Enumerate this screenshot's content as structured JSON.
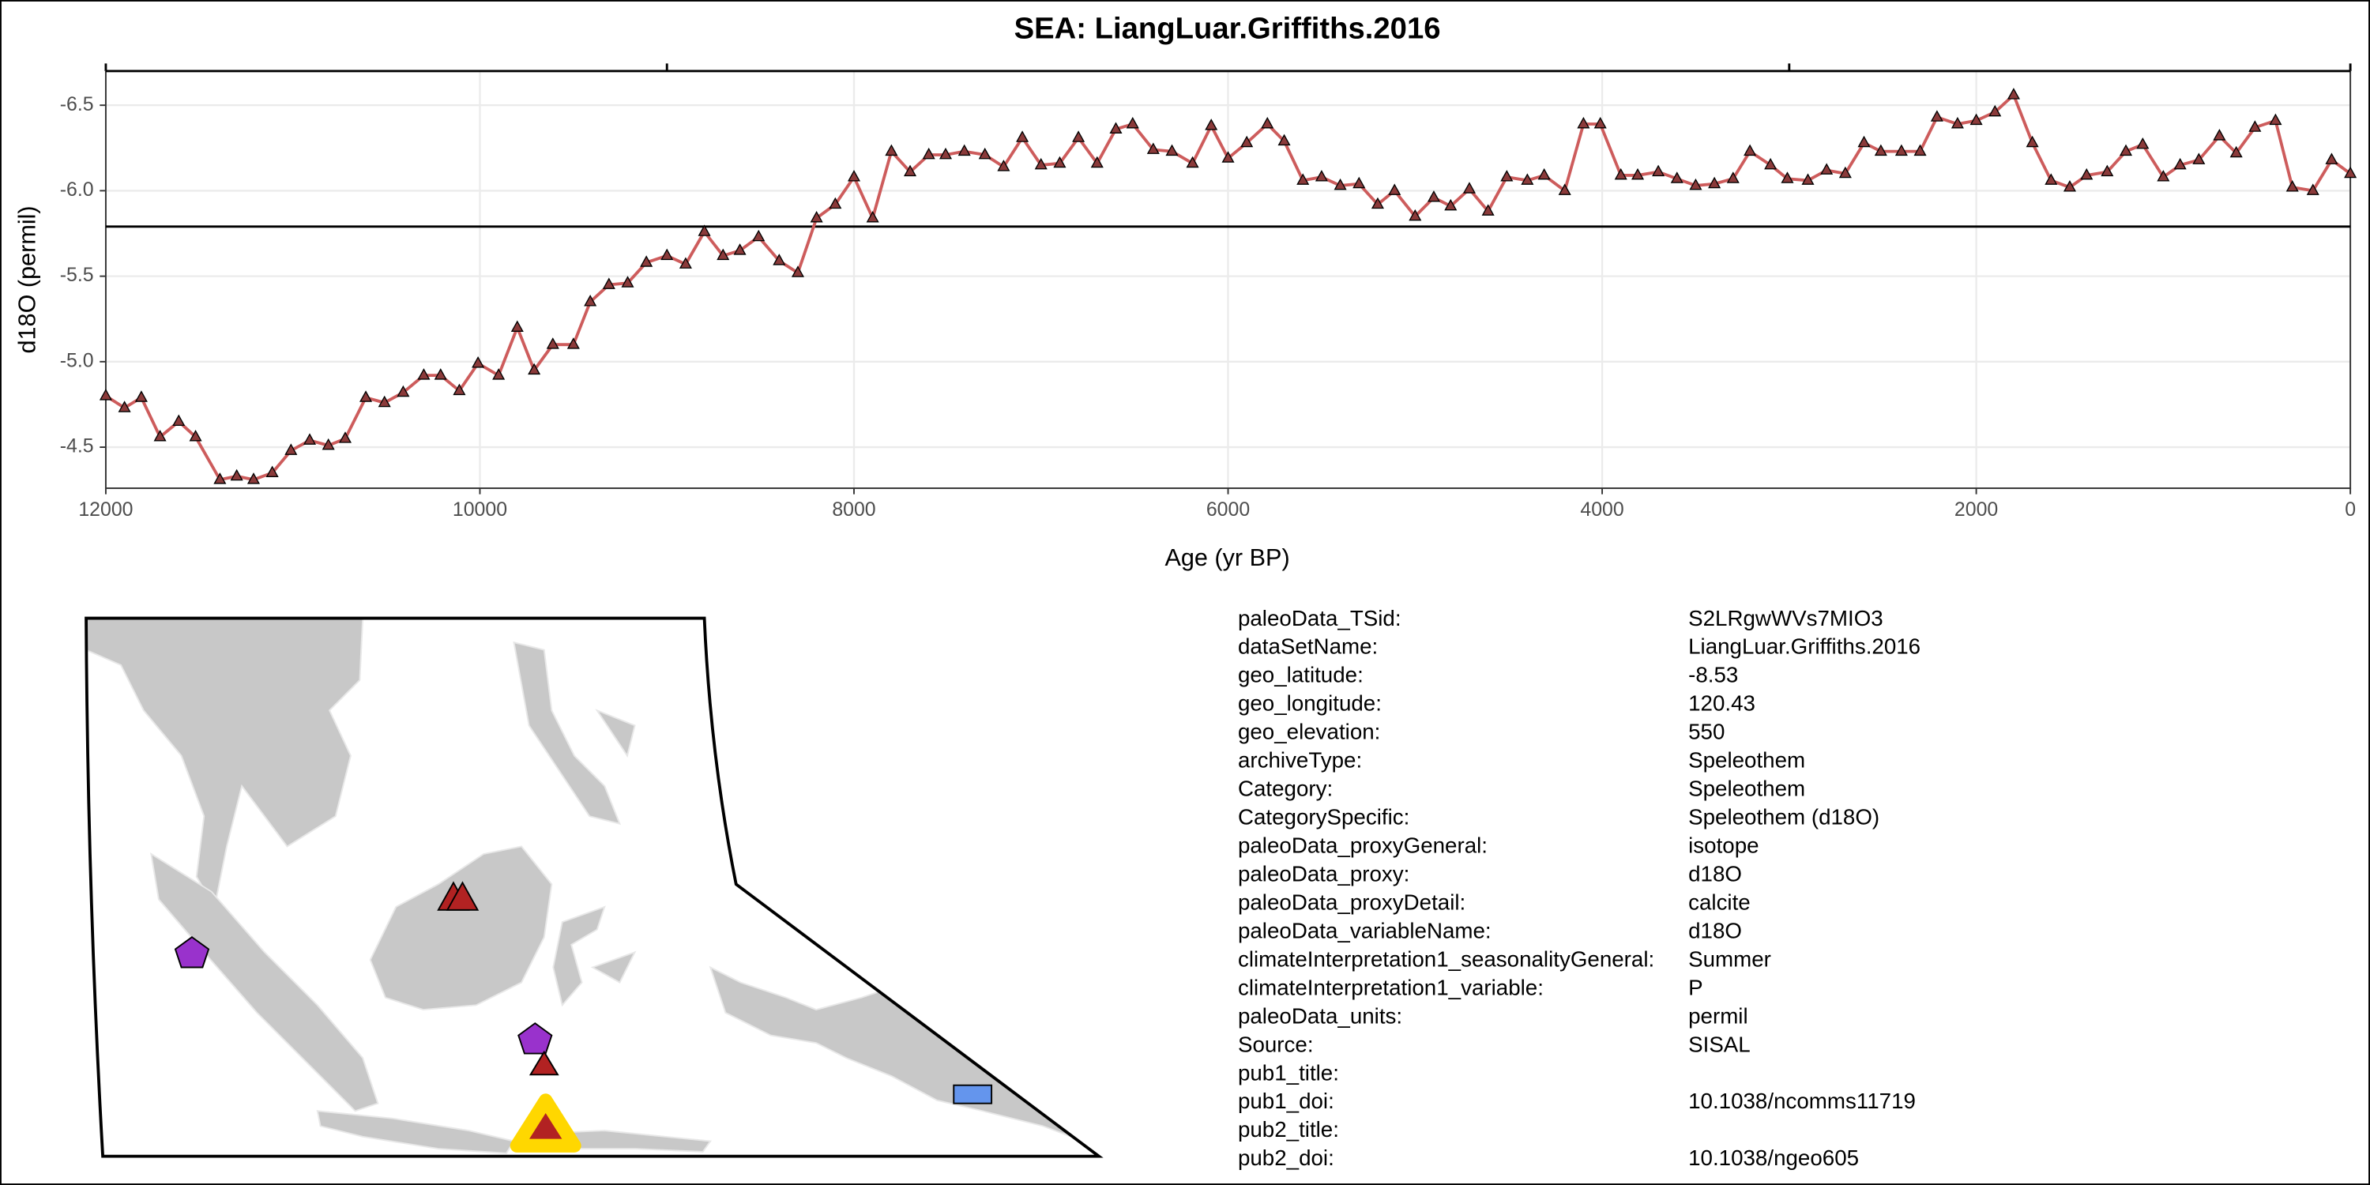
{
  "chart_data": {
    "type": "line",
    "title": "SEA: LiangLuar.Griffiths.2016",
    "x_label": "Age (yr BP)",
    "y_label": "d18O (permil)",
    "x": [
      12000,
      11900,
      11810,
      11710,
      11610,
      11520,
      11390,
      11300,
      11210,
      11110,
      11010,
      10910,
      10810,
      10720,
      10610,
      10510,
      10410,
      10300,
      10210,
      10110,
      10010,
      9900,
      9800,
      9710,
      9610,
      9500,
      9410,
      9310,
      9210,
      9110,
      9000,
      8900,
      8800,
      8700,
      8610,
      8510,
      8400,
      8300,
      8200,
      8100,
      8000,
      7900,
      7800,
      7700,
      7600,
      7510,
      7410,
      7300,
      7200,
      7100,
      7000,
      6900,
      6800,
      6700,
      6600,
      6510,
      6400,
      6300,
      6190,
      6090,
      6000,
      5900,
      5790,
      5700,
      5600,
      5500,
      5400,
      5300,
      5200,
      5110,
      5000,
      4900,
      4810,
      4710,
      4610,
      4510,
      4400,
      4310,
      4200,
      4100,
      4010,
      3900,
      3810,
      3700,
      3600,
      3500,
      3400,
      3300,
      3210,
      3100,
      3010,
      2900,
      2800,
      2700,
      2600,
      2510,
      2400,
      2300,
      2210,
      2100,
      2000,
      1900,
      1800,
      1700,
      1600,
      1500,
      1410,
      1300,
      1200,
      1110,
      1000,
      910,
      810,
      700,
      610,
      510,
      400,
      310,
      200,
      100,
      0
    ],
    "values": [
      -4.8,
      -4.73,
      -4.79,
      -4.56,
      -4.65,
      -4.56,
      -4.31,
      -4.33,
      -4.31,
      -4.35,
      -4.48,
      -4.54,
      -4.51,
      -4.55,
      -4.79,
      -4.76,
      -4.82,
      -4.92,
      -4.92,
      -4.83,
      -4.99,
      -4.92,
      -5.2,
      -4.95,
      -5.1,
      -5.1,
      -5.35,
      -5.45,
      -5.46,
      -5.58,
      -5.62,
      -5.57,
      -5.76,
      -5.62,
      -5.65,
      -5.73,
      -5.59,
      -5.52,
      -5.84,
      -5.92,
      -6.08,
      -5.84,
      -6.23,
      -6.11,
      -6.21,
      -6.21,
      -6.23,
      -6.21,
      -6.14,
      -6.31,
      -6.15,
      -6.16,
      -6.31,
      -6.16,
      -6.36,
      -6.39,
      -6.24,
      -6.23,
      -6.16,
      -6.38,
      -6.19,
      -6.28,
      -6.39,
      -6.29,
      -6.06,
      -6.08,
      -6.03,
      -6.04,
      -5.92,
      -6.0,
      -5.85,
      -5.96,
      -5.91,
      -6.01,
      -5.88,
      -6.08,
      -6.06,
      -6.09,
      -6.0,
      -6.39,
      -6.39,
      -6.09,
      -6.09,
      -6.11,
      -6.07,
      -6.03,
      -6.04,
      -6.07,
      -6.23,
      -6.15,
      -6.07,
      -6.06,
      -6.12,
      -6.1,
      -6.28,
      -6.23,
      -6.23,
      -6.23,
      -6.43,
      -6.39,
      -6.41,
      -6.46,
      -6.56,
      -6.28,
      -6.06,
      -6.02,
      -6.09,
      -6.11,
      -6.23,
      -6.27,
      -6.08,
      -6.15,
      -6.18,
      -6.32,
      -6.22,
      -6.37,
      -6.41,
      -6.02,
      -6.0,
      -6.18,
      -6.1
    ],
    "line_color": "#cd5c5c",
    "marker_color": "#8b3a3a",
    "xlim": [
      12000,
      0
    ],
    "ylim": [
      -4.26,
      -6.7
    ],
    "xticks": [
      12000,
      10000,
      8000,
      6000,
      4000,
      2000,
      0
    ],
    "x2ticks": [
      12000,
      9000,
      3000,
      0
    ],
    "yticks": [
      -6.5,
      {
        "value": -6.0,
        "label": "-6.0"
      },
      -5.5,
      {
        "value": -5.0,
        "label": "-5.0"
      },
      -4.5
    ],
    "hline": -5.79,
    "grid": true
  },
  "metadata": {
    "rows": [
      [
        "paleoData_TSid:",
        "S2LRgwWVs7MIO3"
      ],
      [
        "dataSetName:",
        "LiangLuar.Griffiths.2016"
      ],
      [
        "geo_latitude:",
        "-8.53"
      ],
      [
        "geo_longitude:",
        "120.43"
      ],
      [
        "geo_elevation:",
        "550"
      ],
      [
        "archiveType:",
        "Speleothem"
      ],
      [
        "Category:",
        "Speleothem"
      ],
      [
        "CategorySpecific:",
        "Speleothem (d18O)"
      ],
      [
        "paleoData_proxyGeneral:",
        "isotope"
      ],
      [
        "paleoData_proxy:",
        "d18O"
      ],
      [
        "paleoData_proxyDetail:",
        "calcite"
      ],
      [
        "paleoData_variableName:",
        "d18O"
      ],
      [
        "climateInterpretation1_seasonalityGeneral:",
        "Summer"
      ],
      [
        "climateInterpretation1_variable:",
        "P"
      ],
      [
        "paleoData_units:",
        "permil"
      ],
      [
        "Source:",
        "SISAL"
      ],
      [
        "pub1_title:"
      ],
      [
        "pub1_doi:",
        "10.1038/ncomms11719"
      ],
      [
        "pub2_title:"
      ],
      [
        "pub2_doi:",
        "10.1038/ngeo605"
      ]
    ]
  }
}
